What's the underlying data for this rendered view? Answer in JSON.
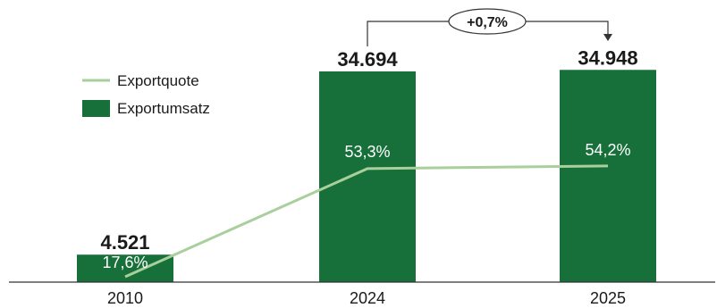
{
  "chart_data": {
    "type": "bar",
    "categories": [
      "2010",
      "2024",
      "2025"
    ],
    "series": [
      {
        "name": "Exportumsatz",
        "kind": "bar",
        "values": [
          4521,
          34694,
          34948
        ],
        "labels": [
          "4.521",
          "34.694",
          "34.948"
        ],
        "color": "#17703a"
      },
      {
        "name": "Exportquote",
        "kind": "line",
        "values": [
          17.6,
          53.3,
          54.2
        ],
        "labels": [
          "17,6%",
          "53,3%",
          "54,2%"
        ],
        "color": "#a8cf9c"
      }
    ],
    "annotation": {
      "from": "2024",
      "to": "2025",
      "label": "+0,7%"
    },
    "legend": {
      "placement": "top-left",
      "entries": [
        "Exportquote",
        "Exportumsatz"
      ]
    },
    "title": "",
    "xlabel": "",
    "ylabel": "",
    "ylim": [
      0,
      40000
    ],
    "grid": false
  }
}
